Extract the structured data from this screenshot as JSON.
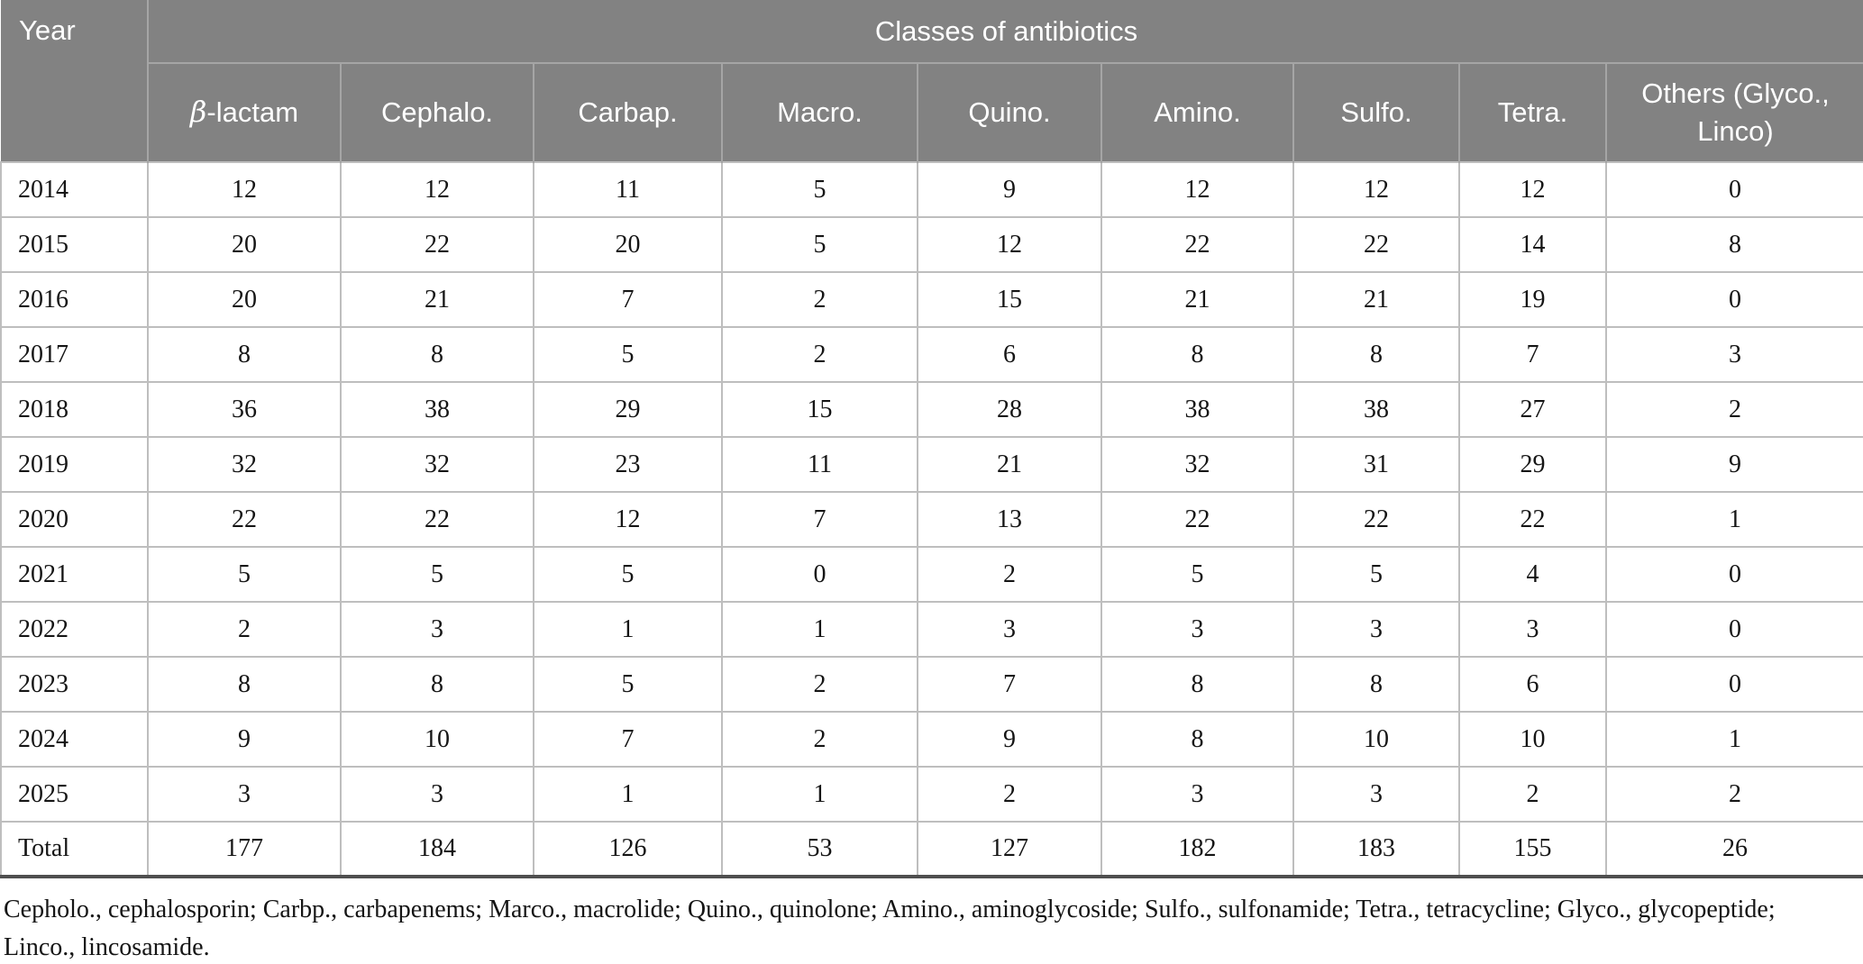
{
  "table": {
    "year_header": "Year",
    "group_header": "Classes of antibiotics",
    "beta_column": {
      "symbol": "β",
      "suffix": "-lactam"
    },
    "columns": [
      "Cephalo.",
      "Carbap.",
      "Macro.",
      "Quino.",
      "Amino.",
      "Sulfo.",
      "Tetra.",
      "Others (Glyco., Linco)"
    ],
    "rows": [
      {
        "year": "2014",
        "values": [
          12,
          12,
          11,
          5,
          9,
          12,
          12,
          12,
          0
        ]
      },
      {
        "year": "2015",
        "values": [
          20,
          22,
          20,
          5,
          12,
          22,
          22,
          14,
          8
        ]
      },
      {
        "year": "2016",
        "values": [
          20,
          21,
          7,
          2,
          15,
          21,
          21,
          19,
          0
        ]
      },
      {
        "year": "2017",
        "values": [
          8,
          8,
          5,
          2,
          6,
          8,
          8,
          7,
          3
        ]
      },
      {
        "year": "2018",
        "values": [
          36,
          38,
          29,
          15,
          28,
          38,
          38,
          27,
          2
        ]
      },
      {
        "year": "2019",
        "values": [
          32,
          32,
          23,
          11,
          21,
          32,
          31,
          29,
          9
        ]
      },
      {
        "year": "2020",
        "values": [
          22,
          22,
          12,
          7,
          13,
          22,
          22,
          22,
          1
        ]
      },
      {
        "year": "2021",
        "values": [
          5,
          5,
          5,
          0,
          2,
          5,
          5,
          4,
          0
        ]
      },
      {
        "year": "2022",
        "values": [
          2,
          3,
          1,
          1,
          3,
          3,
          3,
          3,
          0
        ]
      },
      {
        "year": "2023",
        "values": [
          8,
          8,
          5,
          2,
          7,
          8,
          8,
          6,
          0
        ]
      },
      {
        "year": "2024",
        "values": [
          9,
          10,
          7,
          2,
          9,
          8,
          10,
          10,
          1
        ]
      },
      {
        "year": "2025",
        "values": [
          3,
          3,
          1,
          1,
          2,
          3,
          3,
          2,
          2
        ]
      }
    ],
    "total_row": {
      "label": "Total",
      "values": [
        177,
        184,
        126,
        53,
        127,
        182,
        183,
        155,
        26
      ]
    }
  },
  "footnote": "Cepholo., cephalosporin; Carbp., carbapenems; Marco., macrolide; Quino., quinolone; Amino., aminoglycoside; Sulfo., sulfonamide; Tetra., tetracycline; Glyco., glycopeptide; Linco., lincosamide.",
  "colors": {
    "header_bg": "#828282",
    "header_text": "#ffffff",
    "header_divider": "#a5a5a5",
    "grid_line": "#bebebe",
    "bottom_border": "#4f4f4f"
  }
}
